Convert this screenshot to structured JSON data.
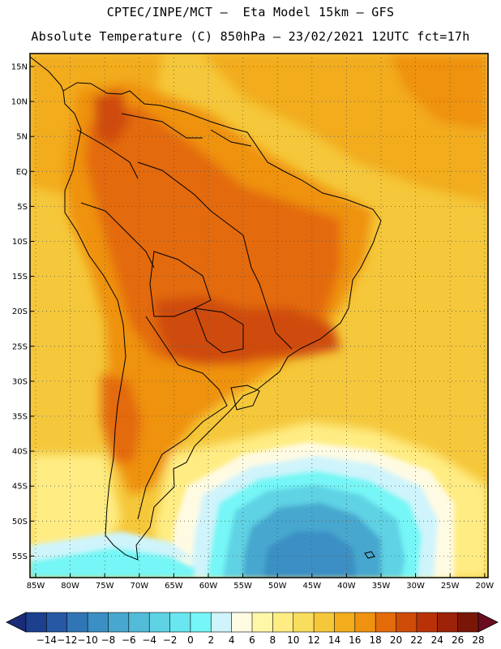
{
  "title_line1": "CPTEC/INPE/MCT –  Eta Model 15km – GFS",
  "title_line2": "Absolute Temperature (C) 850hPa – 23/02/2021 12UTC fct=17h",
  "lat_labels": [
    "15N",
    "10N",
    "5N",
    "EQ",
    "5S",
    "10S",
    "15S",
    "20S",
    "25S",
    "30S",
    "35S",
    "40S",
    "45S",
    "50S",
    "55S"
  ],
  "lon_labels": [
    "85W",
    "80W",
    "75W",
    "70W",
    "65W",
    "60W",
    "55W",
    "50W",
    "45W",
    "40W",
    "35W",
    "30W",
    "25W",
    "20W"
  ],
  "colorbar": {
    "labels": [
      "-14",
      "-12",
      "-10",
      "-8",
      "-6",
      "-4",
      "-2",
      "0",
      "2",
      "4",
      "6",
      "8",
      "10",
      "12",
      "14",
      "16",
      "18",
      "20",
      "22",
      "24",
      "26",
      "28"
    ],
    "colors": [
      "#1c3f8e",
      "#2658a4",
      "#3076b6",
      "#3b8fc4",
      "#47a7cf",
      "#52bcd8",
      "#5fd2e4",
      "#6ae6f0",
      "#76f6f6",
      "#cff4fb",
      "#fffbe3",
      "#fff7a8",
      "#ffed84",
      "#f9dd5c",
      "#f5c73a",
      "#f2ac1c",
      "#ef9210",
      "#e36b0a",
      "#cf4c08",
      "#b93207",
      "#9c2208",
      "#7a1608"
    ],
    "arrow_low_color": "#1a2c78",
    "arrow_high_color": "#6a0d20"
  },
  "field_colors": {
    "ocean_warm": "#f5c73a",
    "ocean_warmer": "#f2ac1c",
    "land_hot": "#ef9210",
    "land_hotter": "#e36b0a",
    "core": "#cf4c08",
    "pale": "#ffed84",
    "cream": "#fffbe3",
    "ice": "#cff4fb",
    "cyan": "#76f6f6",
    "blue_light": "#5fd2e4",
    "blue_mid": "#47a7cf",
    "blue_deep": "#3b8fc4",
    "land_outline": "#000000",
    "grid": "#555555"
  }
}
